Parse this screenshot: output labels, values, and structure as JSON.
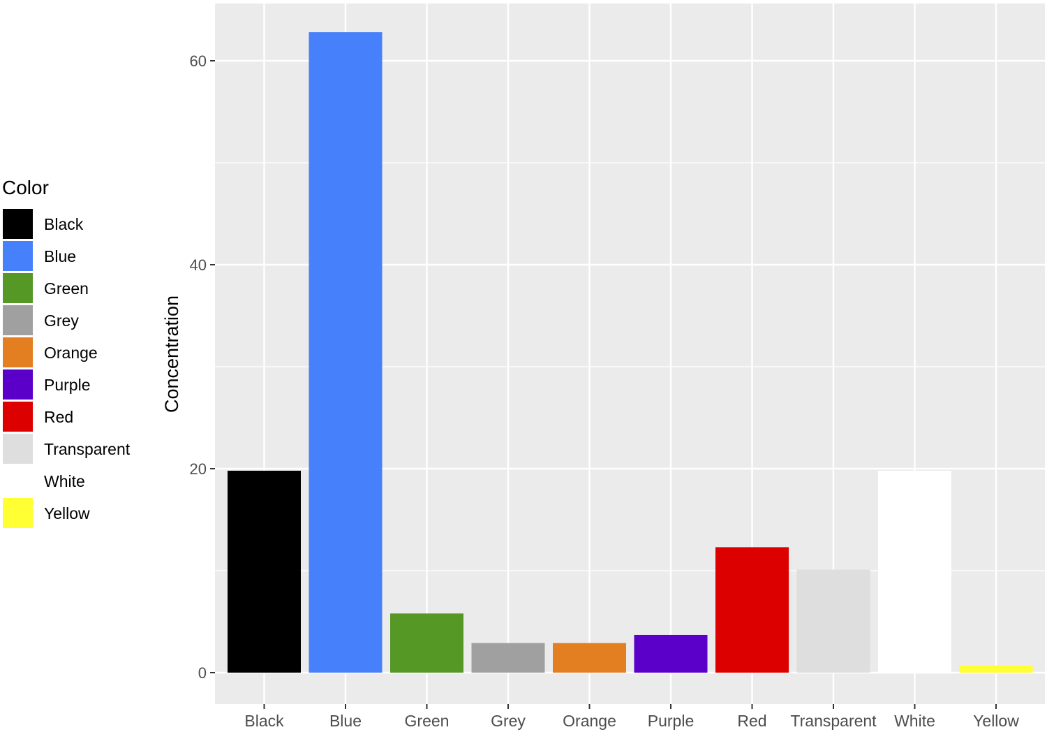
{
  "chart_data": {
    "type": "bar",
    "categories": [
      "Black",
      "Blue",
      "Green",
      "Grey",
      "Orange",
      "Purple",
      "Red",
      "Transparent",
      "White",
      "Yellow"
    ],
    "values": [
      19.8,
      62.8,
      5.8,
      2.9,
      2.9,
      3.7,
      12.3,
      10.1,
      19.8,
      0.7
    ],
    "colors": [
      "#000000",
      "#4780fb",
      "#559826",
      "#a0a0a0",
      "#e37f20",
      "#5a00c9",
      "#dd0000",
      "#dedede",
      "#ffffff",
      "#ffff33"
    ],
    "xlabel": "",
    "ylabel": "Concentration",
    "ylim": [
      0,
      65
    ],
    "yticks": [
      0,
      20,
      40,
      60
    ],
    "grid": true,
    "legend": {
      "title": "Color",
      "placement": "left",
      "entries": [
        "Black",
        "Blue",
        "Green",
        "Grey",
        "Orange",
        "Purple",
        "Red",
        "Transparent",
        "White",
        "Yellow"
      ]
    }
  }
}
